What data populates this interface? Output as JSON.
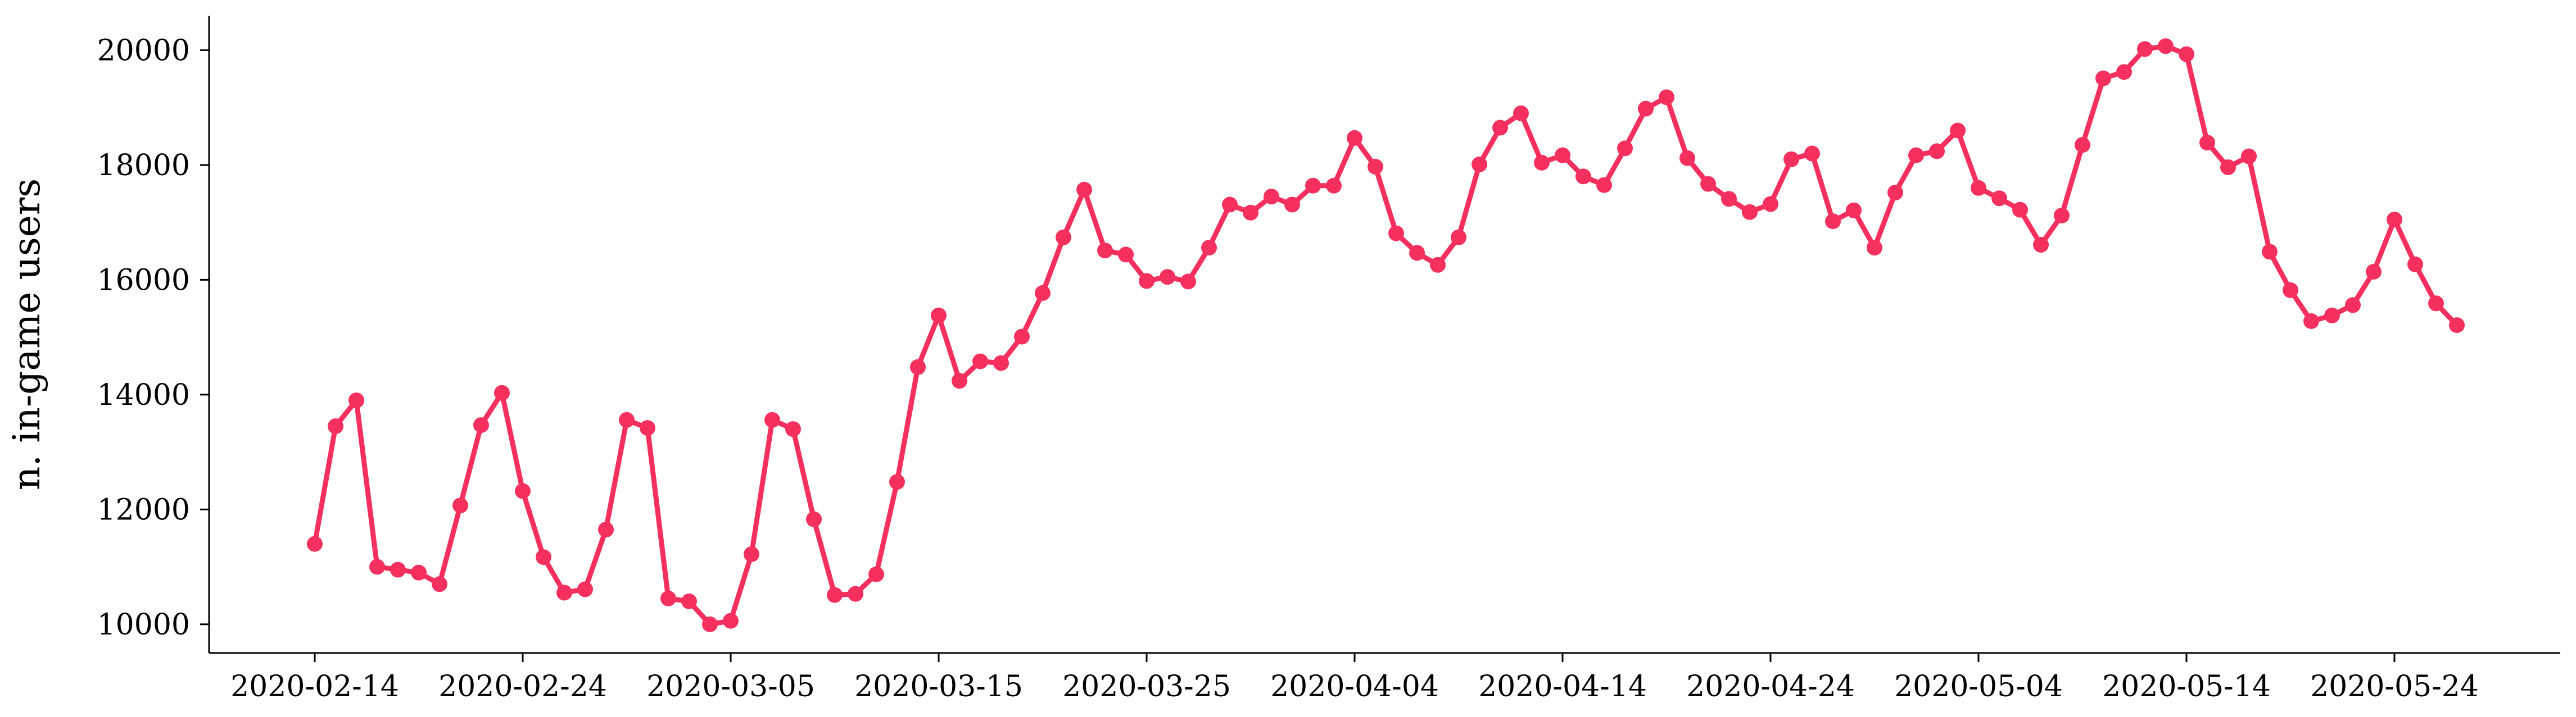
{
  "chart_data": {
    "type": "line",
    "title": "",
    "xlabel": "",
    "ylabel": "n. in-game users",
    "ylim": [
      9500,
      20600
    ],
    "yticks": [
      10000,
      12000,
      14000,
      16000,
      18000,
      20000
    ],
    "xticks": [
      "2020-02-14",
      "2020-02-24",
      "2020-03-05",
      "2020-03-15",
      "2020-03-25",
      "2020-04-04",
      "2020-04-14",
      "2020-04-24",
      "2020-05-04",
      "2020-05-14",
      "2020-05-24"
    ],
    "grid": false,
    "color": "#f5305e",
    "series": [
      {
        "x": [
          "2020-02-14",
          "2020-02-15",
          "2020-02-16",
          "2020-02-17",
          "2020-02-18",
          "2020-02-19",
          "2020-02-20",
          "2020-02-21",
          "2020-02-22",
          "2020-02-23",
          "2020-02-24",
          "2020-02-25",
          "2020-02-26",
          "2020-02-27",
          "2020-02-28",
          "2020-02-29",
          "2020-03-01",
          "2020-03-02",
          "2020-03-03",
          "2020-03-04",
          "2020-03-05",
          "2020-03-06",
          "2020-03-07",
          "2020-03-08",
          "2020-03-09",
          "2020-03-10",
          "2020-03-11",
          "2020-03-12",
          "2020-03-13",
          "2020-03-14",
          "2020-03-15",
          "2020-03-16",
          "2020-03-17",
          "2020-03-18",
          "2020-03-19",
          "2020-03-20",
          "2020-03-21",
          "2020-03-22",
          "2020-03-23",
          "2020-03-24",
          "2020-03-25",
          "2020-03-26",
          "2020-03-27",
          "2020-03-28",
          "2020-03-29",
          "2020-03-30",
          "2020-03-31",
          "2020-04-01",
          "2020-04-02",
          "2020-04-03",
          "2020-04-04",
          "2020-04-05",
          "2020-04-06",
          "2020-04-07",
          "2020-04-08",
          "2020-04-09",
          "2020-04-10",
          "2020-04-11",
          "2020-04-12",
          "2020-04-13",
          "2020-04-14",
          "2020-04-15",
          "2020-04-16",
          "2020-04-17",
          "2020-04-18",
          "2020-04-19",
          "2020-04-20",
          "2020-04-21",
          "2020-04-22",
          "2020-04-23",
          "2020-04-24",
          "2020-04-25",
          "2020-04-26",
          "2020-04-27",
          "2020-04-28",
          "2020-04-29",
          "2020-04-30",
          "2020-05-01",
          "2020-05-02",
          "2020-05-03",
          "2020-05-04",
          "2020-05-05",
          "2020-05-06",
          "2020-05-07",
          "2020-05-08",
          "2020-05-09",
          "2020-05-10",
          "2020-05-11",
          "2020-05-12",
          "2020-05-13",
          "2020-05-14",
          "2020-05-15",
          "2020-05-16",
          "2020-05-17",
          "2020-05-18",
          "2020-05-19",
          "2020-05-20",
          "2020-05-21",
          "2020-05-22",
          "2020-05-23",
          "2020-05-24",
          "2020-05-25",
          "2020-05-26",
          "2020-05-27"
        ],
        "values": [
          11400,
          13450,
          13900,
          11000,
          10950,
          10900,
          10700,
          12070,
          13470,
          14030,
          12320,
          11170,
          10550,
          10610,
          11650,
          13560,
          13420,
          10450,
          10400,
          10000,
          10060,
          11220,
          13560,
          13400,
          11830,
          10510,
          10530,
          10870,
          12480,
          14480,
          15380,
          14240,
          14580,
          14550,
          15010,
          15770,
          16740,
          17570,
          16510,
          16440,
          15980,
          16050,
          15970,
          16560,
          17310,
          17170,
          17450,
          17310,
          17640,
          17640,
          18470,
          17970,
          16810,
          16470,
          16260,
          16740,
          18010,
          18650,
          18900,
          18040,
          18170,
          17800,
          17650,
          18290,
          18980,
          19180,
          18120,
          17670,
          17410,
          17180,
          17320,
          18100,
          18200,
          17020,
          17210,
          16560,
          17520,
          18170,
          18240,
          18600,
          17600,
          17420,
          17220,
          16610,
          17120,
          18350,
          19510,
          19620,
          20020,
          20070,
          19930,
          18390,
          17960,
          18150,
          16490,
          15820,
          15280,
          15380,
          15560,
          16140,
          17050,
          16270,
          15590,
          15210
        ]
      }
    ]
  }
}
